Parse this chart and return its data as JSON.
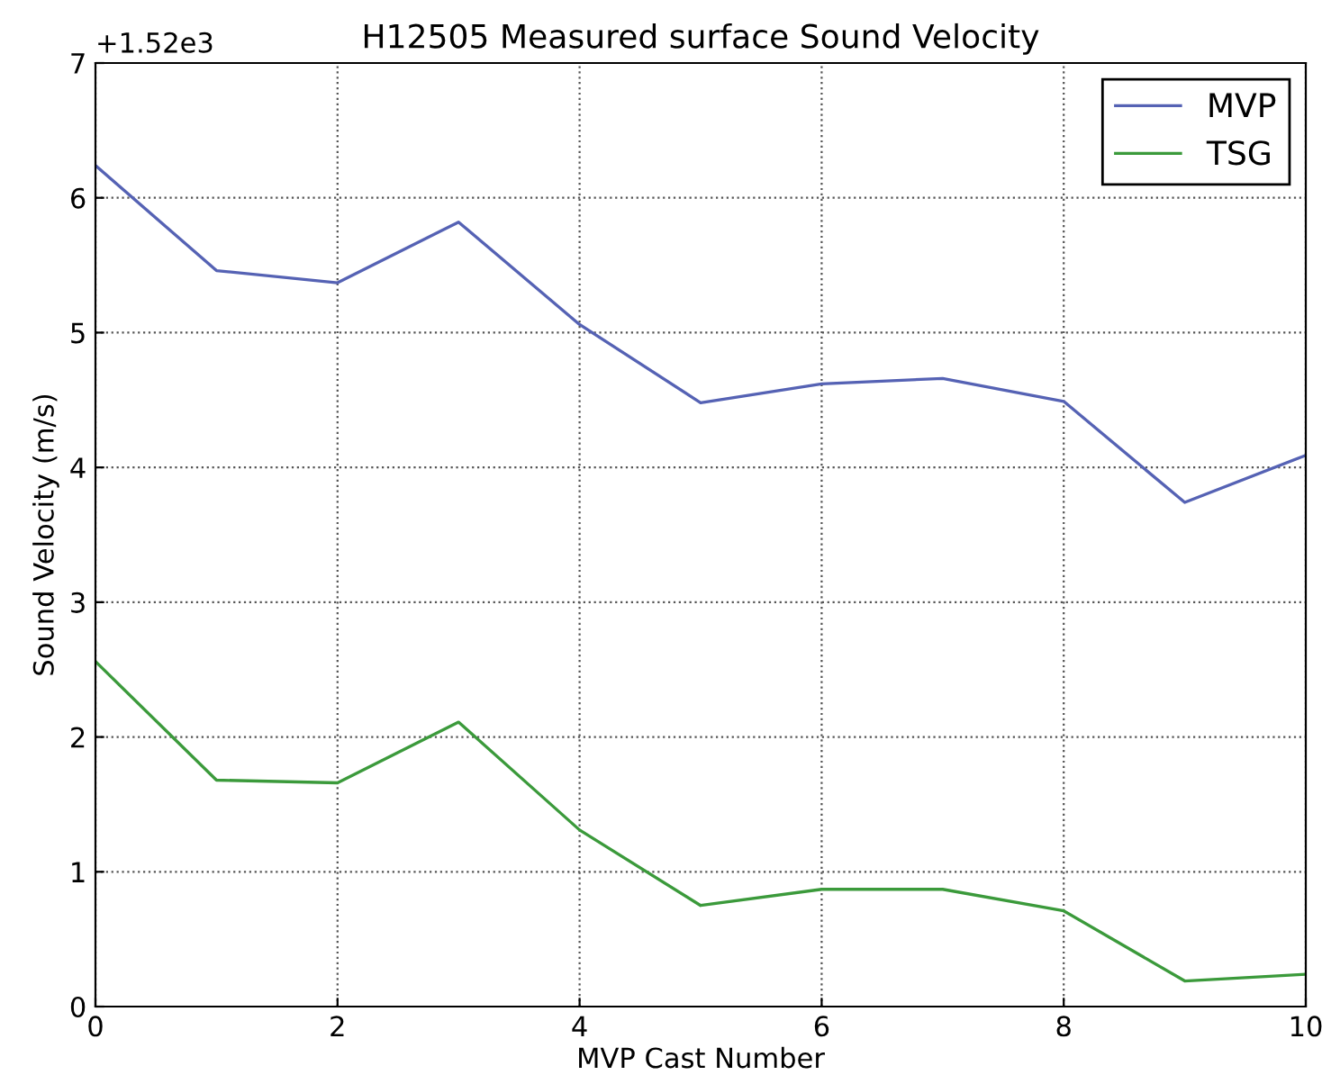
{
  "chart_data": {
    "type": "line",
    "title": "H12505 Measured surface Sound Velocity",
    "xlabel": "MVP Cast Number",
    "ylabel": "Sound Velocity (m/s)",
    "annotations": [
      "+1.52e3"
    ],
    "x": [
      0,
      1,
      2,
      3,
      4,
      5,
      6,
      7,
      8,
      9,
      10
    ],
    "series": [
      {
        "name": "MVP",
        "color": "#5562b4",
        "values": [
          6.24,
          5.46,
          5.37,
          5.82,
          5.06,
          4.48,
          4.62,
          4.66,
          4.49,
          3.74,
          4.09
        ]
      },
      {
        "name": "TSG",
        "color": "#3b9a3b",
        "values": [
          2.56,
          1.68,
          1.66,
          2.11,
          1.31,
          0.75,
          0.87,
          0.87,
          0.71,
          0.19,
          0.24
        ]
      }
    ],
    "xlim": [
      0,
      10
    ],
    "xticks": [
      0,
      2,
      4,
      6,
      8,
      10
    ],
    "ylim": [
      0,
      7
    ],
    "yticks": [
      0,
      1,
      2,
      3,
      4,
      5,
      6,
      7
    ],
    "grid": true,
    "legend": "top right",
    "line_style": "solid",
    "marker": "none"
  }
}
